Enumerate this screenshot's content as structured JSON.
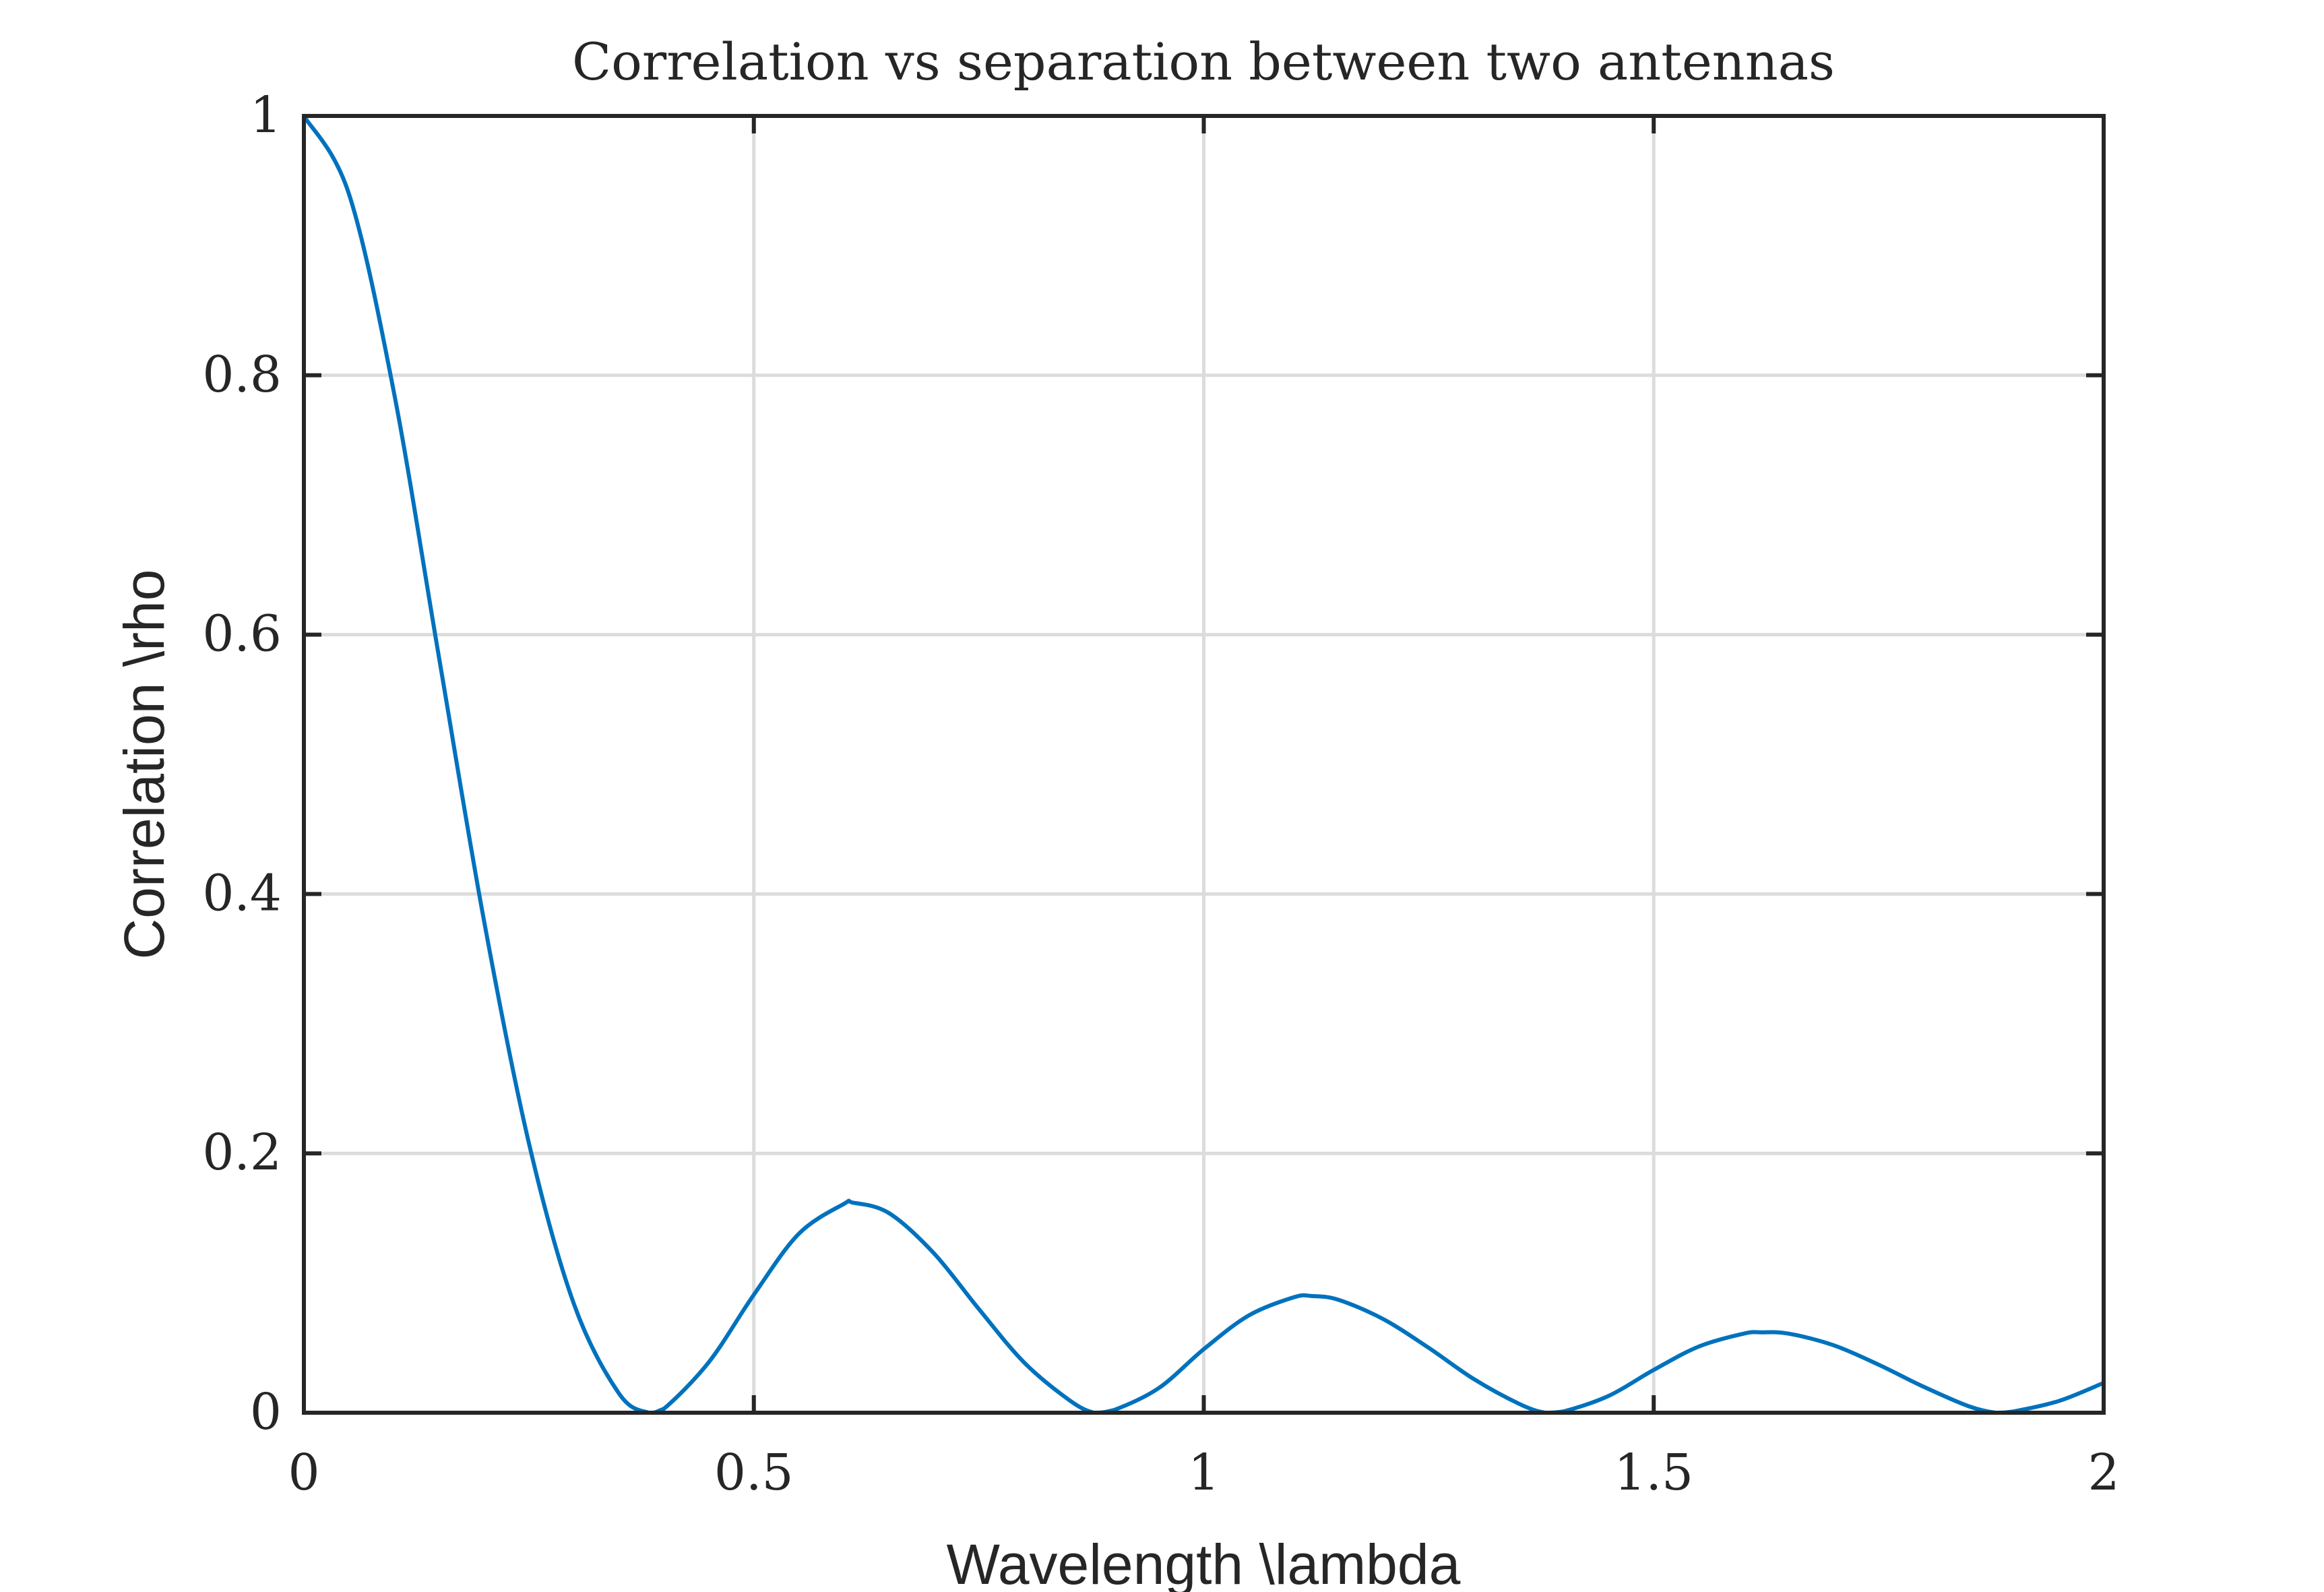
{
  "chart_data": {
    "type": "line",
    "title": "Correlation vs separation between two antennas",
    "xlabel": "Wavelength \\lambda",
    "ylabel": "Correlation \\rho",
    "xlim": [
      0,
      2
    ],
    "ylim": [
      0,
      1
    ],
    "x_ticks": [
      0,
      0.5,
      1,
      1.5,
      2
    ],
    "x_tick_labels": [
      "0",
      "0.5",
      "1",
      "1.5",
      "2"
    ],
    "y_ticks": [
      0,
      0.2,
      0.4,
      0.6,
      0.8,
      1
    ],
    "y_tick_labels": [
      "0",
      "0.2",
      "0.4",
      "0.6",
      "0.8",
      "1"
    ],
    "grid": true,
    "legend": false,
    "series": [
      {
        "color": "#0072BD",
        "x": [
          0,
          0.05,
          0.1,
          0.15,
          0.2,
          0.25,
          0.3,
          0.35,
          0.383,
          0.4,
          0.45,
          0.5,
          0.55,
          0.6,
          0.61,
          0.65,
          0.7,
          0.75,
          0.8,
          0.85,
          0.878,
          0.9,
          0.95,
          1.0,
          1.05,
          1.1,
          1.12,
          1.15,
          1.2,
          1.25,
          1.3,
          1.35,
          1.379,
          1.4,
          1.45,
          1.5,
          1.55,
          1.6,
          1.62,
          1.65,
          1.7,
          1.75,
          1.8,
          1.85,
          1.88,
          1.9,
          1.95,
          2.0
        ],
        "y": [
          1.0,
          0.94,
          0.787,
          0.583,
          0.38,
          0.208,
          0.084,
          0.015,
          0.0,
          0.003,
          0.039,
          0.091,
          0.138,
          0.161,
          0.162,
          0.154,
          0.123,
          0.08,
          0.039,
          0.01,
          0.0,
          0.002,
          0.019,
          0.049,
          0.075,
          0.089,
          0.09,
          0.087,
          0.072,
          0.05,
          0.026,
          0.007,
          0.0,
          0.001,
          0.013,
          0.033,
          0.051,
          0.061,
          0.062,
          0.061,
          0.052,
          0.037,
          0.02,
          0.005,
          0.0,
          0.001,
          0.009,
          0.023
        ]
      }
    ]
  }
}
